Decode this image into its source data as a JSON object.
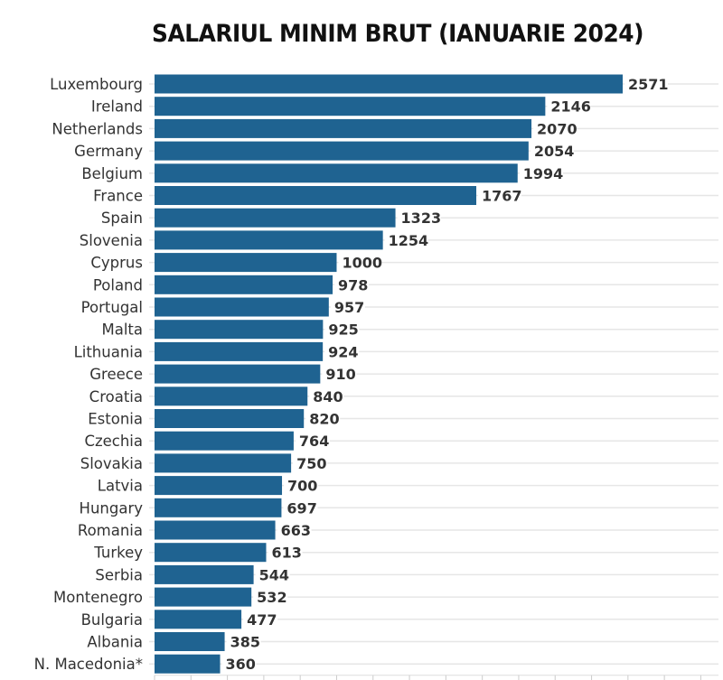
{
  "chart_data": {
    "type": "bar",
    "orientation": "horizontal",
    "title": "SALARIUL MINIM BRUT (IANUARIE 2024)",
    "categories": [
      "Luxembourg",
      "Ireland",
      "Netherlands",
      "Germany",
      "Belgium",
      "France",
      "Spain",
      "Slovenia",
      "Cyprus",
      "Poland",
      "Portugal",
      "Malta",
      "Lithuania",
      "Greece",
      "Croatia",
      "Estonia",
      "Czechia",
      "Slovakia",
      "Latvia",
      "Hungary",
      "Romania",
      "Turkey",
      "Serbia",
      "Montenegro",
      "Bulgaria",
      "Albania",
      "N. Macedonia*"
    ],
    "values": [
      2571,
      2146,
      2070,
      2054,
      1994,
      1767,
      1323,
      1254,
      1000,
      978,
      957,
      925,
      924,
      910,
      840,
      820,
      764,
      750,
      700,
      697,
      663,
      613,
      544,
      532,
      477,
      385,
      360
    ],
    "xlim": [
      0,
      3100
    ],
    "grid": true,
    "bar_color": "#1f6391",
    "data_labels": true
  }
}
